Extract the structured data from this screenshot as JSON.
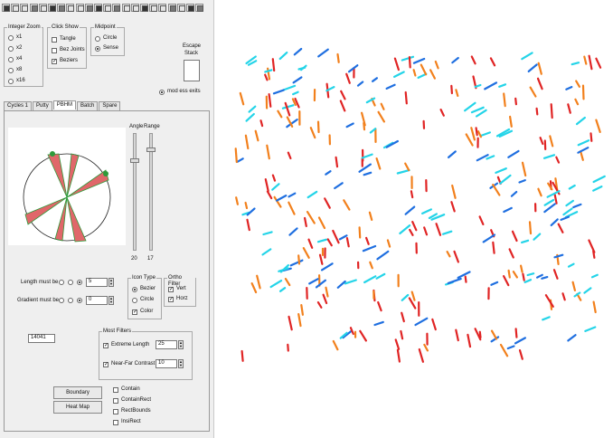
{
  "integer_zoom": {
    "title": "Integer Zoom",
    "options": [
      "x1",
      "x2",
      "x4",
      "x8",
      "x16"
    ],
    "selected": "x4"
  },
  "click_show": {
    "title": "Click Show",
    "options": [
      {
        "label": "Tangle",
        "checked": false
      },
      {
        "label": "Bez Joints",
        "checked": false
      },
      {
        "label": "Beziers",
        "checked": true
      }
    ]
  },
  "midpoint": {
    "title": "Midpoint",
    "options": [
      "Circle",
      "Sense"
    ],
    "selected": "Sense"
  },
  "escape_stack": {
    "label_line1": "Escape",
    "label_line2": "Stack"
  },
  "mod_ess_exits": {
    "label": "mod ess exits",
    "selected": true
  },
  "tabs": [
    {
      "label": "Cycles 1",
      "active": false
    },
    {
      "label": "Putty",
      "active": false
    },
    {
      "label": "PBHM",
      "active": true
    },
    {
      "label": "Batch",
      "active": false
    },
    {
      "label": "Spare",
      "active": false
    }
  ],
  "sliders": {
    "angle_label": "Angle",
    "range_label": "Range",
    "angle_value": "20",
    "range_value": "17"
  },
  "length_must_be": {
    "label": "Length must be",
    "value": "5"
  },
  "gradient_must_be": {
    "label": "Gradient must be",
    "value": "0"
  },
  "icon_type": {
    "title": "Icon Type",
    "options": [
      "Bezier",
      "Circle"
    ],
    "selected": "Bezier",
    "color_label": "Color",
    "color_checked": true
  },
  "ortho_filter": {
    "title": "Ortho Filter",
    "options": [
      {
        "label": "Vert",
        "checked": true
      },
      {
        "label": "Horz",
        "checked": true
      }
    ]
  },
  "count_field": "14041",
  "most_filters": {
    "title": "Most Filters",
    "extreme_length": {
      "label": "Extreme Length",
      "checked": true,
      "value": "25"
    },
    "near_far_contrast": {
      "label": "Near-Far Contrast",
      "checked": true,
      "value": "10"
    }
  },
  "buttons": {
    "boundary": "Boundary",
    "heat_map": "Heat Map"
  },
  "bottom_checks": [
    {
      "label": "Contain",
      "checked": false
    },
    {
      "label": "ContainRect",
      "checked": false
    },
    {
      "label": "RectBounds",
      "checked": false
    },
    {
      "label": "InsiRect",
      "checked": false
    }
  ],
  "colors": {
    "red": "#e02424",
    "orange": "#f2801c",
    "blue": "#1f6fe0",
    "cyan": "#24d4e8",
    "wedge_red": "#e0676a",
    "wedge_green": "#2e9a3a"
  }
}
